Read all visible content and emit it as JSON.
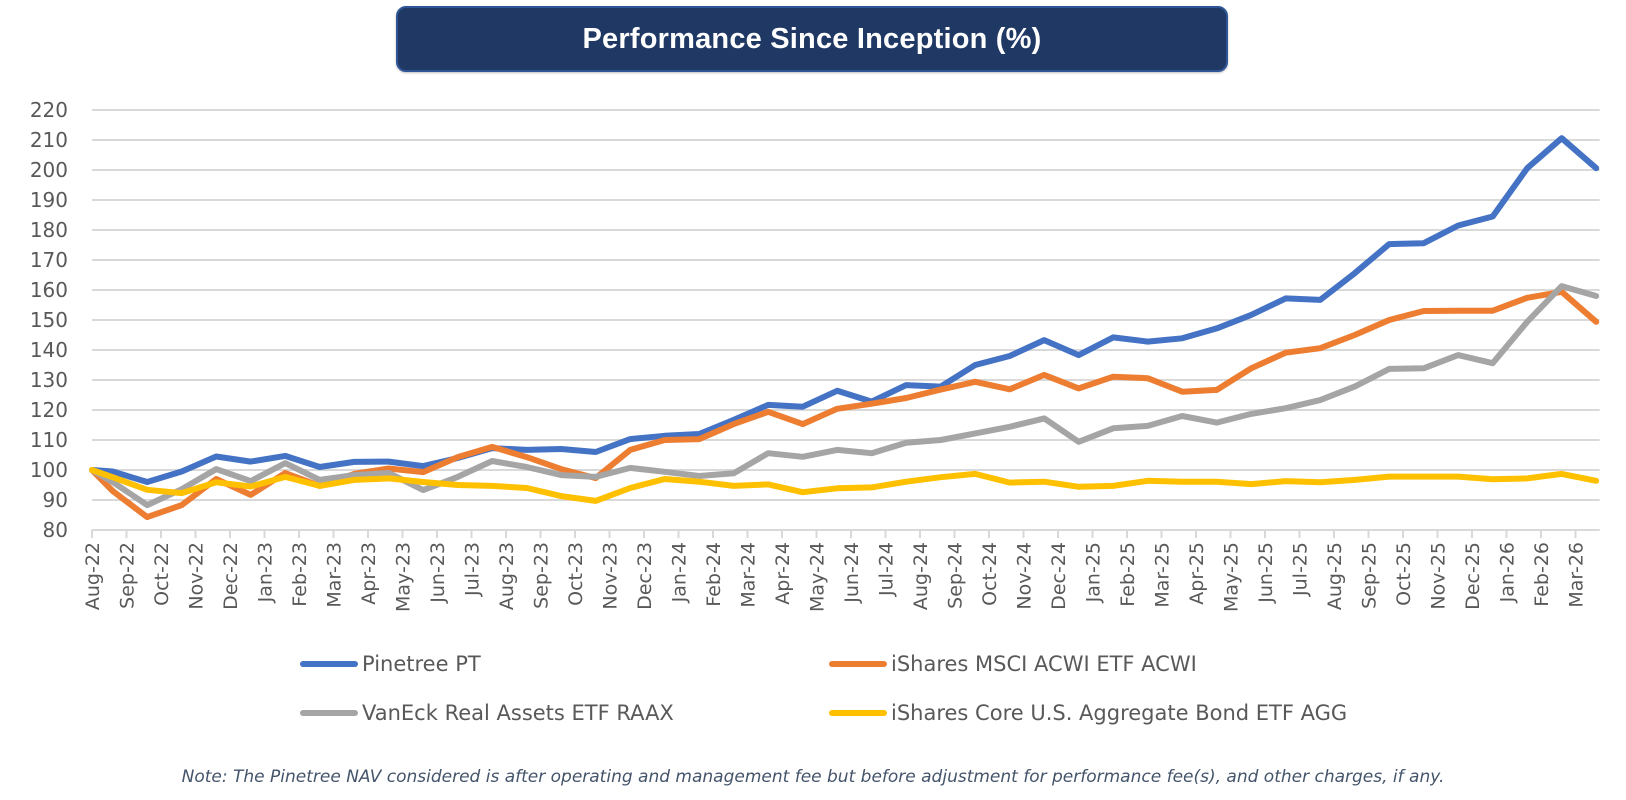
{
  "title": "Performance Since Inception (%)",
  "note": "Note: The Pinetree NAV considered is after operating and management fee but before adjustment for performance fee(s), and other charges, if any.",
  "chart_data": {
    "type": "line",
    "title": "Performance Since Inception (%)",
    "xlabel": "",
    "ylabel": "",
    "ylim": [
      80,
      220
    ],
    "yticks": [
      80,
      90,
      100,
      110,
      120,
      130,
      140,
      150,
      160,
      170,
      180,
      190,
      200,
      210,
      220
    ],
    "grid": true,
    "legend_position": "bottom",
    "x_tick_labels": [
      "Aug-22",
      "Sep-22",
      "Oct-22",
      "Nov-22",
      "Dec-22",
      "Jan-23",
      "Feb-23",
      "Mar-23",
      "Apr-23",
      "May-23",
      "Jun-23",
      "Jul-23",
      "Aug-23",
      "Sep-23",
      "Oct-23",
      "Nov-23",
      "Dec-23",
      "Jan-24",
      "Feb-24",
      "Mar-24",
      "Apr-24",
      "May-24",
      "Jun-24",
      "Jul-24",
      "Aug-24",
      "Sep-24",
      "Oct-24",
      "Nov-24",
      "Dec-24",
      "Jan-25",
      "Feb-25",
      "Mar-25",
      "Apr-25",
      "May-25",
      "Jun-25",
      "Jul-25",
      "Aug-25",
      "Sep-25",
      "Oct-25",
      "Nov-25",
      "Dec-25",
      "Jan-26",
      "Feb-26",
      "Mar-26"
    ],
    "x_axis_end_months": 43.7,
    "x_months": [
      0,
      0.6,
      1.6,
      2.6,
      3.6,
      4.6,
      5.6,
      6.6,
      7.6,
      8.6,
      9.6,
      10.6,
      11.6,
      12.6,
      13.6,
      14.6,
      15.6,
      16.6,
      17.6,
      18.6,
      19.6,
      20.6,
      21.6,
      22.6,
      23.6,
      24.6,
      25.6,
      26.6,
      27.6,
      28.6,
      29.6,
      30.6,
      31.6,
      32.6,
      33.6,
      34.6,
      35.6,
      36.6,
      37.6,
      38.6,
      39.6,
      40.6,
      41.6,
      42.6,
      43.6
    ],
    "series": [
      {
        "name": "Pinetree PT",
        "color": "#4472c4",
        "values": [
          100,
          99.5,
          96,
          99.5,
          104.5,
          102.8,
          104.7,
          101,
          102.7,
          102.8,
          101.3,
          104,
          107.3,
          106.7,
          107,
          106,
          110.3,
          111.4,
          112,
          116.7,
          121.7,
          121.1,
          126.4,
          122.8,
          128.3,
          127.8,
          135,
          138,
          143.3,
          138.3,
          144.2,
          142.8,
          143.9,
          147.2,
          151.7,
          157.2,
          156.7,
          165.6,
          175.3,
          175.6,
          181.5,
          184.5,
          200.6,
          210.6,
          200.6
        ]
      },
      {
        "name": "iShares MSCI ACWI ETF ACWI",
        "color": "#ed7d31",
        "values": [
          100,
          93,
          84.3,
          88.3,
          97,
          91.7,
          99,
          94.7,
          98.7,
          100.5,
          99.3,
          104.3,
          107.7,
          104.3,
          100.3,
          97.3,
          106.7,
          110,
          110.3,
          115.3,
          119.4,
          115.3,
          120.4,
          122.1,
          124,
          126.8,
          129.4,
          126.9,
          131.7,
          127.2,
          131.1,
          130.6,
          126.1,
          126.7,
          133.9,
          139.1,
          140.6,
          145,
          150,
          153,
          153.1,
          153.1,
          157.4,
          159.4,
          149.4
        ]
      },
      {
        "name": "VanEck Real Assets ETF RAAX",
        "color": "#a5a5a5",
        "values": [
          100,
          96,
          88.3,
          93.6,
          100.3,
          96.3,
          102.3,
          96.7,
          98.3,
          99,
          93.3,
          97.7,
          103,
          101,
          98.3,
          97.7,
          100.7,
          99.4,
          98,
          98.9,
          105.6,
          104.4,
          106.7,
          105.6,
          109.1,
          110,
          112.2,
          114.4,
          117.2,
          109.4,
          113.9,
          114.7,
          118,
          115.8,
          118.7,
          120.6,
          123.3,
          127.8,
          133.7,
          133.9,
          138.3,
          135.6,
          149.4,
          161.3,
          158
        ]
      },
      {
        "name": "iShares Core U.S. Aggregate Bond ETF AGG",
        "color": "#ffc000",
        "values": [
          100,
          97.6,
          93.4,
          92.3,
          95.9,
          94.5,
          97.7,
          94.7,
          96.7,
          97.2,
          96,
          95,
          94.7,
          94,
          91.3,
          89.7,
          94,
          97,
          96.1,
          94.7,
          95.2,
          92.6,
          93.9,
          94.2,
          96.1,
          97.6,
          98.7,
          95.8,
          96.1,
          94.4,
          94.7,
          96.4,
          96.1,
          96.1,
          95.3,
          96.3,
          95.9,
          96.7,
          97.8,
          97.8,
          97.8,
          96.9,
          97.2,
          98.7,
          96.4
        ]
      }
    ]
  }
}
